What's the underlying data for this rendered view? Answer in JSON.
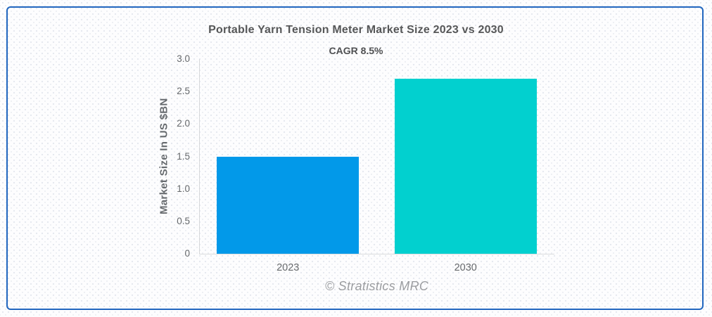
{
  "accent_colors": {
    "card_border": "#2166bf",
    "axis_line": "#d6d8da"
  },
  "chart_data": {
    "type": "bar",
    "title": "Portable Yarn Tension Meter Market Size 2023 vs 2030",
    "subtitle": "CAGR 8.5%",
    "categories": [
      "2023",
      "2030"
    ],
    "values": [
      1.5,
      2.7
    ],
    "bar_colors": [
      "#0299e9",
      "#02d0cf"
    ],
    "xlabel": "",
    "ylabel": "Market Size In US $BN",
    "ylim": [
      0,
      3.0
    ],
    "yticks": [
      0,
      0.5,
      1.0,
      1.5,
      2.0,
      2.5,
      3.0
    ],
    "ytick_labels": [
      "0",
      "0.5",
      "1.0",
      "1.5",
      "2.0",
      "2.5",
      "3.0"
    ],
    "grid": false,
    "legend": false,
    "bar_width_fraction": 0.8,
    "watermark": "© Stratistics MRC"
  }
}
